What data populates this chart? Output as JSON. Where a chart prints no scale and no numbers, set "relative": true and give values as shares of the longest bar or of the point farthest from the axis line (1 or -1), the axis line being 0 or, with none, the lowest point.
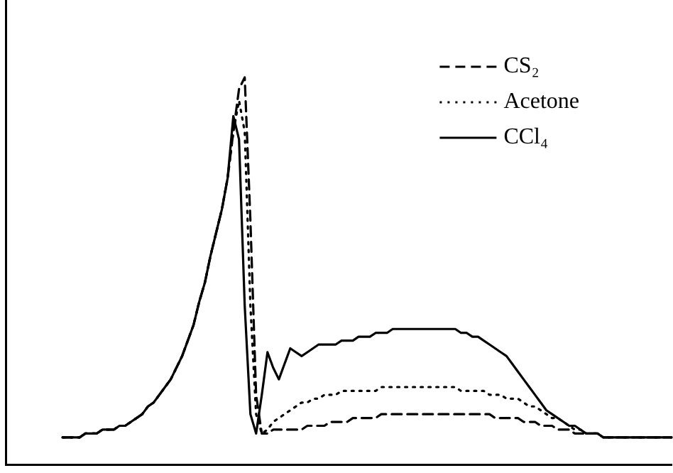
{
  "chart_data": {
    "type": "line",
    "relative": true,
    "tick_labels": false,
    "legend": "top right",
    "marker": "none",
    "categories": [
      null,
      null,
      null,
      null,
      null,
      null,
      null,
      null,
      null,
      null,
      null,
      null,
      null,
      null,
      null,
      null,
      null,
      null,
      null,
      null,
      null,
      null,
      null,
      null,
      null,
      null,
      null,
      null,
      null,
      null,
      null,
      null,
      null,
      null,
      null,
      null,
      null,
      null,
      null,
      null,
      null,
      null,
      null,
      null,
      null,
      null,
      null,
      null,
      null,
      null,
      null,
      null,
      null,
      null,
      null,
      null,
      null,
      null,
      null,
      null,
      null,
      null,
      null,
      null,
      null,
      null,
      null,
      null,
      null,
      null,
      null,
      null,
      null,
      null,
      null,
      null,
      null,
      null,
      null,
      null,
      null,
      null,
      null,
      null,
      null,
      null,
      null,
      null,
      null,
      null,
      null,
      null,
      null,
      null,
      null,
      null,
      null,
      null,
      null,
      null,
      null,
      null,
      null,
      null,
      null,
      null,
      null,
      null,
      null,
      null,
      null,
      null,
      null,
      null,
      null,
      null,
      null,
      null
    ],
    "series": [
      {
        "name": "CS₂",
        "color": "#000000",
        "line_style": "dashed",
        "values": [
          null,
          null,
          null,
          null,
          null,
          null,
          null,
          null,
          null,
          null,
          0.07,
          0.07,
          0.07,
          0.07,
          0.08,
          0.08,
          0.08,
          0.09,
          0.09,
          0.09,
          0.1,
          0.1,
          0.11,
          0.12,
          0.13,
          0.15,
          0.16,
          0.18,
          0.2,
          0.22,
          0.25,
          0.28,
          0.32,
          0.36,
          0.42,
          0.47,
          0.54,
          0.6,
          0.66,
          0.74,
          0.86,
          0.97,
          1,
          0.63,
          0.18,
          0.08,
          0.08,
          0.09,
          0.09,
          0.09,
          0.09,
          0.09,
          0.09,
          0.1,
          0.1,
          0.1,
          0.1,
          0.11,
          0.11,
          0.11,
          0.11,
          0.12,
          0.12,
          0.12,
          0.12,
          0.12,
          0.13,
          0.13,
          0.13,
          0.13,
          0.13,
          0.13,
          0.13,
          0.13,
          0.13,
          0.13,
          0.13,
          0.13,
          0.13,
          0.13,
          0.13,
          0.13,
          0.13,
          0.13,
          0.13,
          0.13,
          0.12,
          0.12,
          0.12,
          0.12,
          0.12,
          0.11,
          0.11,
          0.11,
          0.1,
          0.1,
          0.1,
          0.09,
          0.09,
          0.09,
          0.08,
          0.08,
          0.08,
          0.08,
          0.08,
          0.07,
          0.07,
          0.07,
          0.07,
          0.07,
          0.07,
          0.07,
          0.07,
          0.07,
          0.07,
          0.07,
          0.07,
          0.07
        ]
      },
      {
        "name": "Acetone",
        "color": "#000000",
        "line_style": "dotted",
        "values": [
          null,
          null,
          null,
          null,
          null,
          null,
          null,
          null,
          null,
          null,
          0.07,
          0.07,
          0.07,
          0.07,
          0.08,
          0.08,
          0.08,
          0.09,
          0.09,
          0.09,
          0.1,
          0.1,
          0.11,
          0.12,
          0.13,
          0.15,
          0.16,
          0.18,
          0.2,
          0.22,
          0.25,
          0.28,
          0.32,
          0.36,
          0.42,
          0.47,
          0.54,
          0.6,
          0.66,
          0.74,
          0.86,
          0.94,
          0.86,
          0.41,
          0.13,
          0.08,
          0.09,
          0.11,
          0.12,
          0.13,
          0.14,
          0.15,
          0.16,
          0.16,
          0.17,
          0.17,
          0.18,
          0.18,
          0.18,
          0.19,
          0.19,
          0.19,
          0.19,
          0.19,
          0.19,
          0.19,
          0.2,
          0.2,
          0.2,
          0.2,
          0.2,
          0.2,
          0.2,
          0.2,
          0.2,
          0.2,
          0.2,
          0.2,
          0.2,
          0.2,
          0.19,
          0.19,
          0.19,
          0.19,
          0.19,
          0.18,
          0.18,
          0.18,
          0.17,
          0.17,
          0.17,
          0.16,
          0.15,
          0.15,
          0.14,
          0.13,
          0.12,
          0.12,
          0.11,
          0.1,
          0.09,
          0.09,
          0.08,
          0.08,
          0.08,
          0.07,
          0.07,
          0.07,
          0.07,
          0.07,
          0.07,
          0.07,
          0.07,
          0.07,
          0.07,
          0.07,
          0.07,
          0.07
        ]
      },
      {
        "name": "CCl₄",
        "color": "#000000",
        "line_style": "solid",
        "values": [
          null,
          null,
          null,
          null,
          null,
          null,
          null,
          null,
          null,
          null,
          0.07,
          0.07,
          0.07,
          0.07,
          0.08,
          0.08,
          0.08,
          0.09,
          0.09,
          0.09,
          0.1,
          0.1,
          0.11,
          0.12,
          0.13,
          0.15,
          0.16,
          0.18,
          0.2,
          0.22,
          0.25,
          0.28,
          0.32,
          0.36,
          0.42,
          0.47,
          0.54,
          0.6,
          0.66,
          0.74,
          0.9,
          0.84,
          0.41,
          0.13,
          0.08,
          0.18,
          0.29,
          0.25,
          0.22,
          0.26,
          0.3,
          0.29,
          0.28,
          0.29,
          0.3,
          0.31,
          0.31,
          0.31,
          0.31,
          0.32,
          0.32,
          0.32,
          0.33,
          0.33,
          0.33,
          0.34,
          0.34,
          0.34,
          0.35,
          0.35,
          0.35,
          0.35,
          0.35,
          0.35,
          0.35,
          0.35,
          0.35,
          0.35,
          0.35,
          0.35,
          0.34,
          0.34,
          0.33,
          0.33,
          0.32,
          0.31,
          0.3,
          0.29,
          0.28,
          0.26,
          0.24,
          0.22,
          0.2,
          0.18,
          0.16,
          0.14,
          0.13,
          0.12,
          0.11,
          0.1,
          0.1,
          0.09,
          0.08,
          0.08,
          0.08,
          0.07,
          0.07,
          0.07,
          0.07,
          0.07,
          0.07,
          0.07,
          0.07,
          0.07,
          0.07,
          0.07,
          0.07,
          0.07
        ]
      }
    ]
  }
}
